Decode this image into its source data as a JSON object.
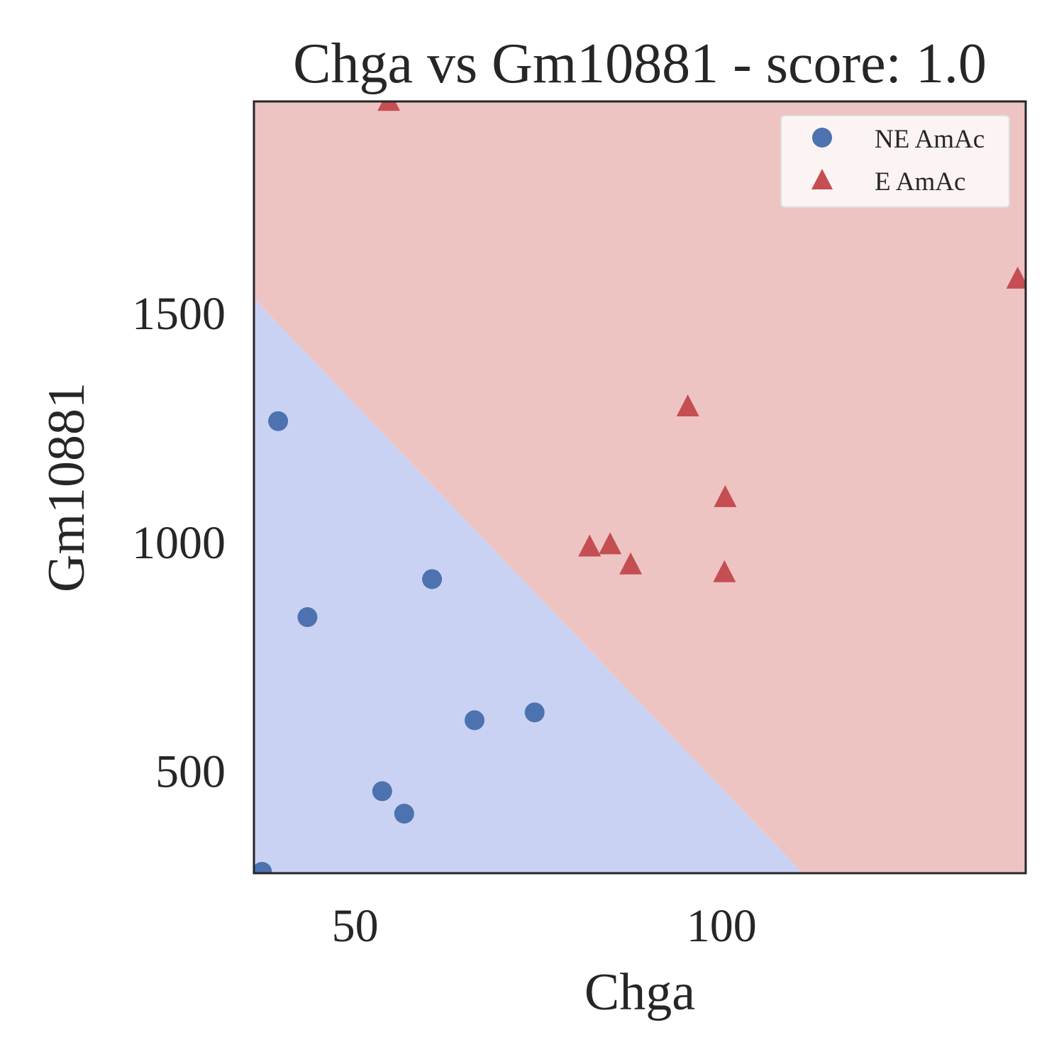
{
  "chart_data": {
    "type": "scatter",
    "title": "Chga vs Gm10881 - score: 1.0",
    "xlabel": "Chga",
    "ylabel": "Gm10881",
    "xlim": [
      36.2,
      141.5
    ],
    "ylim": [
      275,
      1960
    ],
    "xticks": [
      50,
      100
    ],
    "xtick_labels": [
      "50",
      "100"
    ],
    "yticks": [
      500,
      1000,
      1500
    ],
    "ytick_labels": [
      "500",
      "1000",
      "1500"
    ],
    "grid": false,
    "legend_position": "top-right",
    "decision_boundary": {
      "points": [
        [
          36.2,
          1530
        ],
        [
          111.1,
          275
        ]
      ],
      "below_region": "NE AmAc",
      "above_region": "E AmAc"
    },
    "series": [
      {
        "name": "NE AmAc",
        "marker": "circle",
        "color": "#4C72B0",
        "region_color": "#C9D2F2",
        "points": [
          [
            37.3,
            278
          ],
          [
            39.5,
            1262
          ],
          [
            43.5,
            834
          ],
          [
            53.7,
            454
          ],
          [
            56.7,
            405
          ],
          [
            60.5,
            917
          ],
          [
            66.3,
            609
          ],
          [
            74.5,
            626
          ]
        ]
      },
      {
        "name": "E AmAc",
        "marker": "triangle",
        "color": "#C44E52",
        "region_color": "#EEC4C3",
        "points": [
          [
            54.6,
            1958
          ],
          [
            82.0,
            985
          ],
          [
            84.8,
            990
          ],
          [
            87.6,
            946
          ],
          [
            95.4,
            1291
          ],
          [
            100.5,
            1093
          ],
          [
            100.4,
            929
          ],
          [
            140.4,
            1570
          ]
        ]
      }
    ]
  }
}
